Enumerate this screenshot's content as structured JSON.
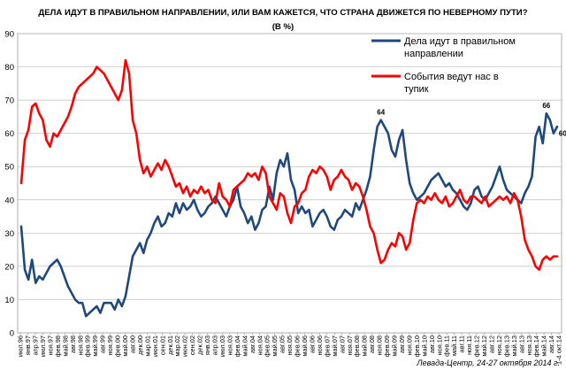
{
  "chart_data": {
    "type": "line",
    "title": "ДЕЛА ИДУТ В ПРАВИЛЬНОМ НАПРАВЛЕНИИ, ИЛИ ВАМ КАЖЕТСЯ, ЧТО СТРАНА ДВИЖЕТСЯ ПО НЕВЕРНОМУ ПУТИ?",
    "subtitle": "(В %)",
    "source": "Левада-Центр, 24-27 октября 2014 г.",
    "ylim": [
      0,
      90
    ],
    "yticks": [
      0,
      10,
      20,
      30,
      40,
      50,
      60,
      70,
      80,
      90
    ],
    "grid": true,
    "legend_position": "top-right",
    "x_labels": [
      "июл.96",
      "янв.97",
      "апр.97",
      "июл.97",
      "ноя.97",
      "фев.98",
      "май.98",
      "авг.98",
      "ноя.98",
      "фев.99",
      "май.99",
      "авг.99",
      "ноя.99",
      "фев.00",
      "май.00",
      "авг.00",
      "дек.00",
      "мар.01",
      "июн.01",
      "сен.01",
      "дек.01",
      "мар.02",
      "июн.02",
      "сен.02",
      "дек.02",
      "янв.03",
      "апр.03",
      "июл.03",
      "ноя.03",
      "фев.04",
      "май.04",
      "авг.04",
      "ноя.04",
      "фев.05",
      "май.05",
      "авг.05",
      "ноя.05",
      "фев.06",
      "май.06",
      "авг.06",
      "ноя.06",
      "фев.07",
      "май.07",
      "авг.07",
      "ноя.07",
      "фев.08",
      "май.08",
      "авг.08",
      "ноя.08",
      "фев.09",
      "май.09",
      "авг.09",
      "ноя.09",
      "фев.10",
      "май.10",
      "авг.10",
      "ноя.10",
      "фев.11",
      "май.11",
      "авг.11",
      "ноя.11",
      "фев.12",
      "май.12",
      "авг.12",
      "ноя.12",
      "фев.13",
      "май.13",
      "авг.13",
      "ноя.13",
      "фев.14",
      "май.14",
      "авг.14",
      "1-4 окт.14"
    ],
    "series": [
      {
        "name": "Дела идут в правильном направлении",
        "color": "#1F497D",
        "values": [
          32,
          19,
          16,
          22,
          15,
          17,
          16,
          18,
          20,
          21,
          22,
          20,
          17,
          14,
          12,
          10,
          9,
          9,
          5,
          6,
          7,
          8,
          6,
          9,
          9,
          9,
          7,
          10,
          8,
          11,
          17,
          23,
          25,
          27,
          24,
          28,
          30,
          33,
          35,
          32,
          33,
          36,
          35,
          39,
          36,
          39,
          37,
          38,
          40,
          37,
          35,
          36,
          38,
          39,
          41,
          39,
          37,
          35,
          38,
          40,
          44,
          38,
          36,
          33,
          35,
          31,
          33,
          37,
          38,
          44,
          40,
          48,
          52,
          50,
          54,
          46,
          43,
          36,
          38,
          36,
          37,
          32,
          34,
          36,
          37,
          35,
          32,
          31,
          34,
          35,
          37,
          36,
          35,
          39,
          37,
          40,
          43,
          47,
          55,
          62,
          64,
          62,
          60,
          55,
          53,
          58,
          61,
          52,
          45,
          42,
          40,
          41,
          42,
          44,
          46,
          47,
          48,
          46,
          44,
          45,
          43,
          42,
          40,
          38,
          37,
          39,
          43,
          44,
          41,
          40,
          42,
          44,
          47,
          50,
          46,
          43,
          42,
          41,
          40,
          39,
          42,
          44,
          47,
          59,
          62,
          57,
          66,
          64,
          60,
          62
        ],
        "label_points": [
          {
            "index": 100,
            "text": "64"
          },
          {
            "index": 146,
            "text": "66"
          },
          {
            "index": 148,
            "text": "60"
          }
        ]
      },
      {
        "name": "События ведут нас в тупик",
        "color": "#FF0000",
        "values": [
          45,
          58,
          61,
          68,
          69,
          66,
          64,
          58,
          56,
          60,
          59,
          61,
          63,
          65,
          68,
          72,
          74,
          75,
          76,
          77,
          78,
          80,
          79,
          78,
          76,
          74,
          72,
          70,
          73,
          82,
          78,
          64,
          60,
          52,
          48,
          50,
          47,
          49,
          51,
          49,
          52,
          50,
          47,
          44,
          45,
          42,
          44,
          41,
          43,
          42,
          44,
          42,
          43,
          40,
          39,
          45,
          41,
          40,
          38,
          43,
          44,
          45,
          46,
          48,
          47,
          48,
          46,
          50,
          48,
          41,
          39,
          37,
          42,
          41,
          36,
          33,
          38,
          39,
          42,
          43,
          47,
          49,
          48,
          50,
          49,
          47,
          43,
          46,
          47,
          49,
          47,
          46,
          43,
          45,
          44,
          41,
          37,
          32,
          30,
          25,
          21,
          22,
          25,
          27,
          26,
          30,
          29,
          25,
          27,
          34,
          39,
          40,
          39,
          41,
          40,
          42,
          40,
          39,
          41,
          38,
          39,
          41,
          43,
          40,
          39,
          41,
          41,
          40,
          39,
          41,
          38,
          39,
          40,
          41,
          40,
          41,
          39,
          42,
          40,
          35,
          28,
          25,
          23,
          20,
          19,
          22,
          23,
          22,
          23,
          23
        ],
        "label_points": []
      }
    ]
  },
  "legend": [
    {
      "label": "Дела идут в правильном",
      "label2": "направлении",
      "color": "#1F497D"
    },
    {
      "label": "События ведут нас в",
      "label2": "тупик",
      "color": "#FF0000"
    }
  ]
}
